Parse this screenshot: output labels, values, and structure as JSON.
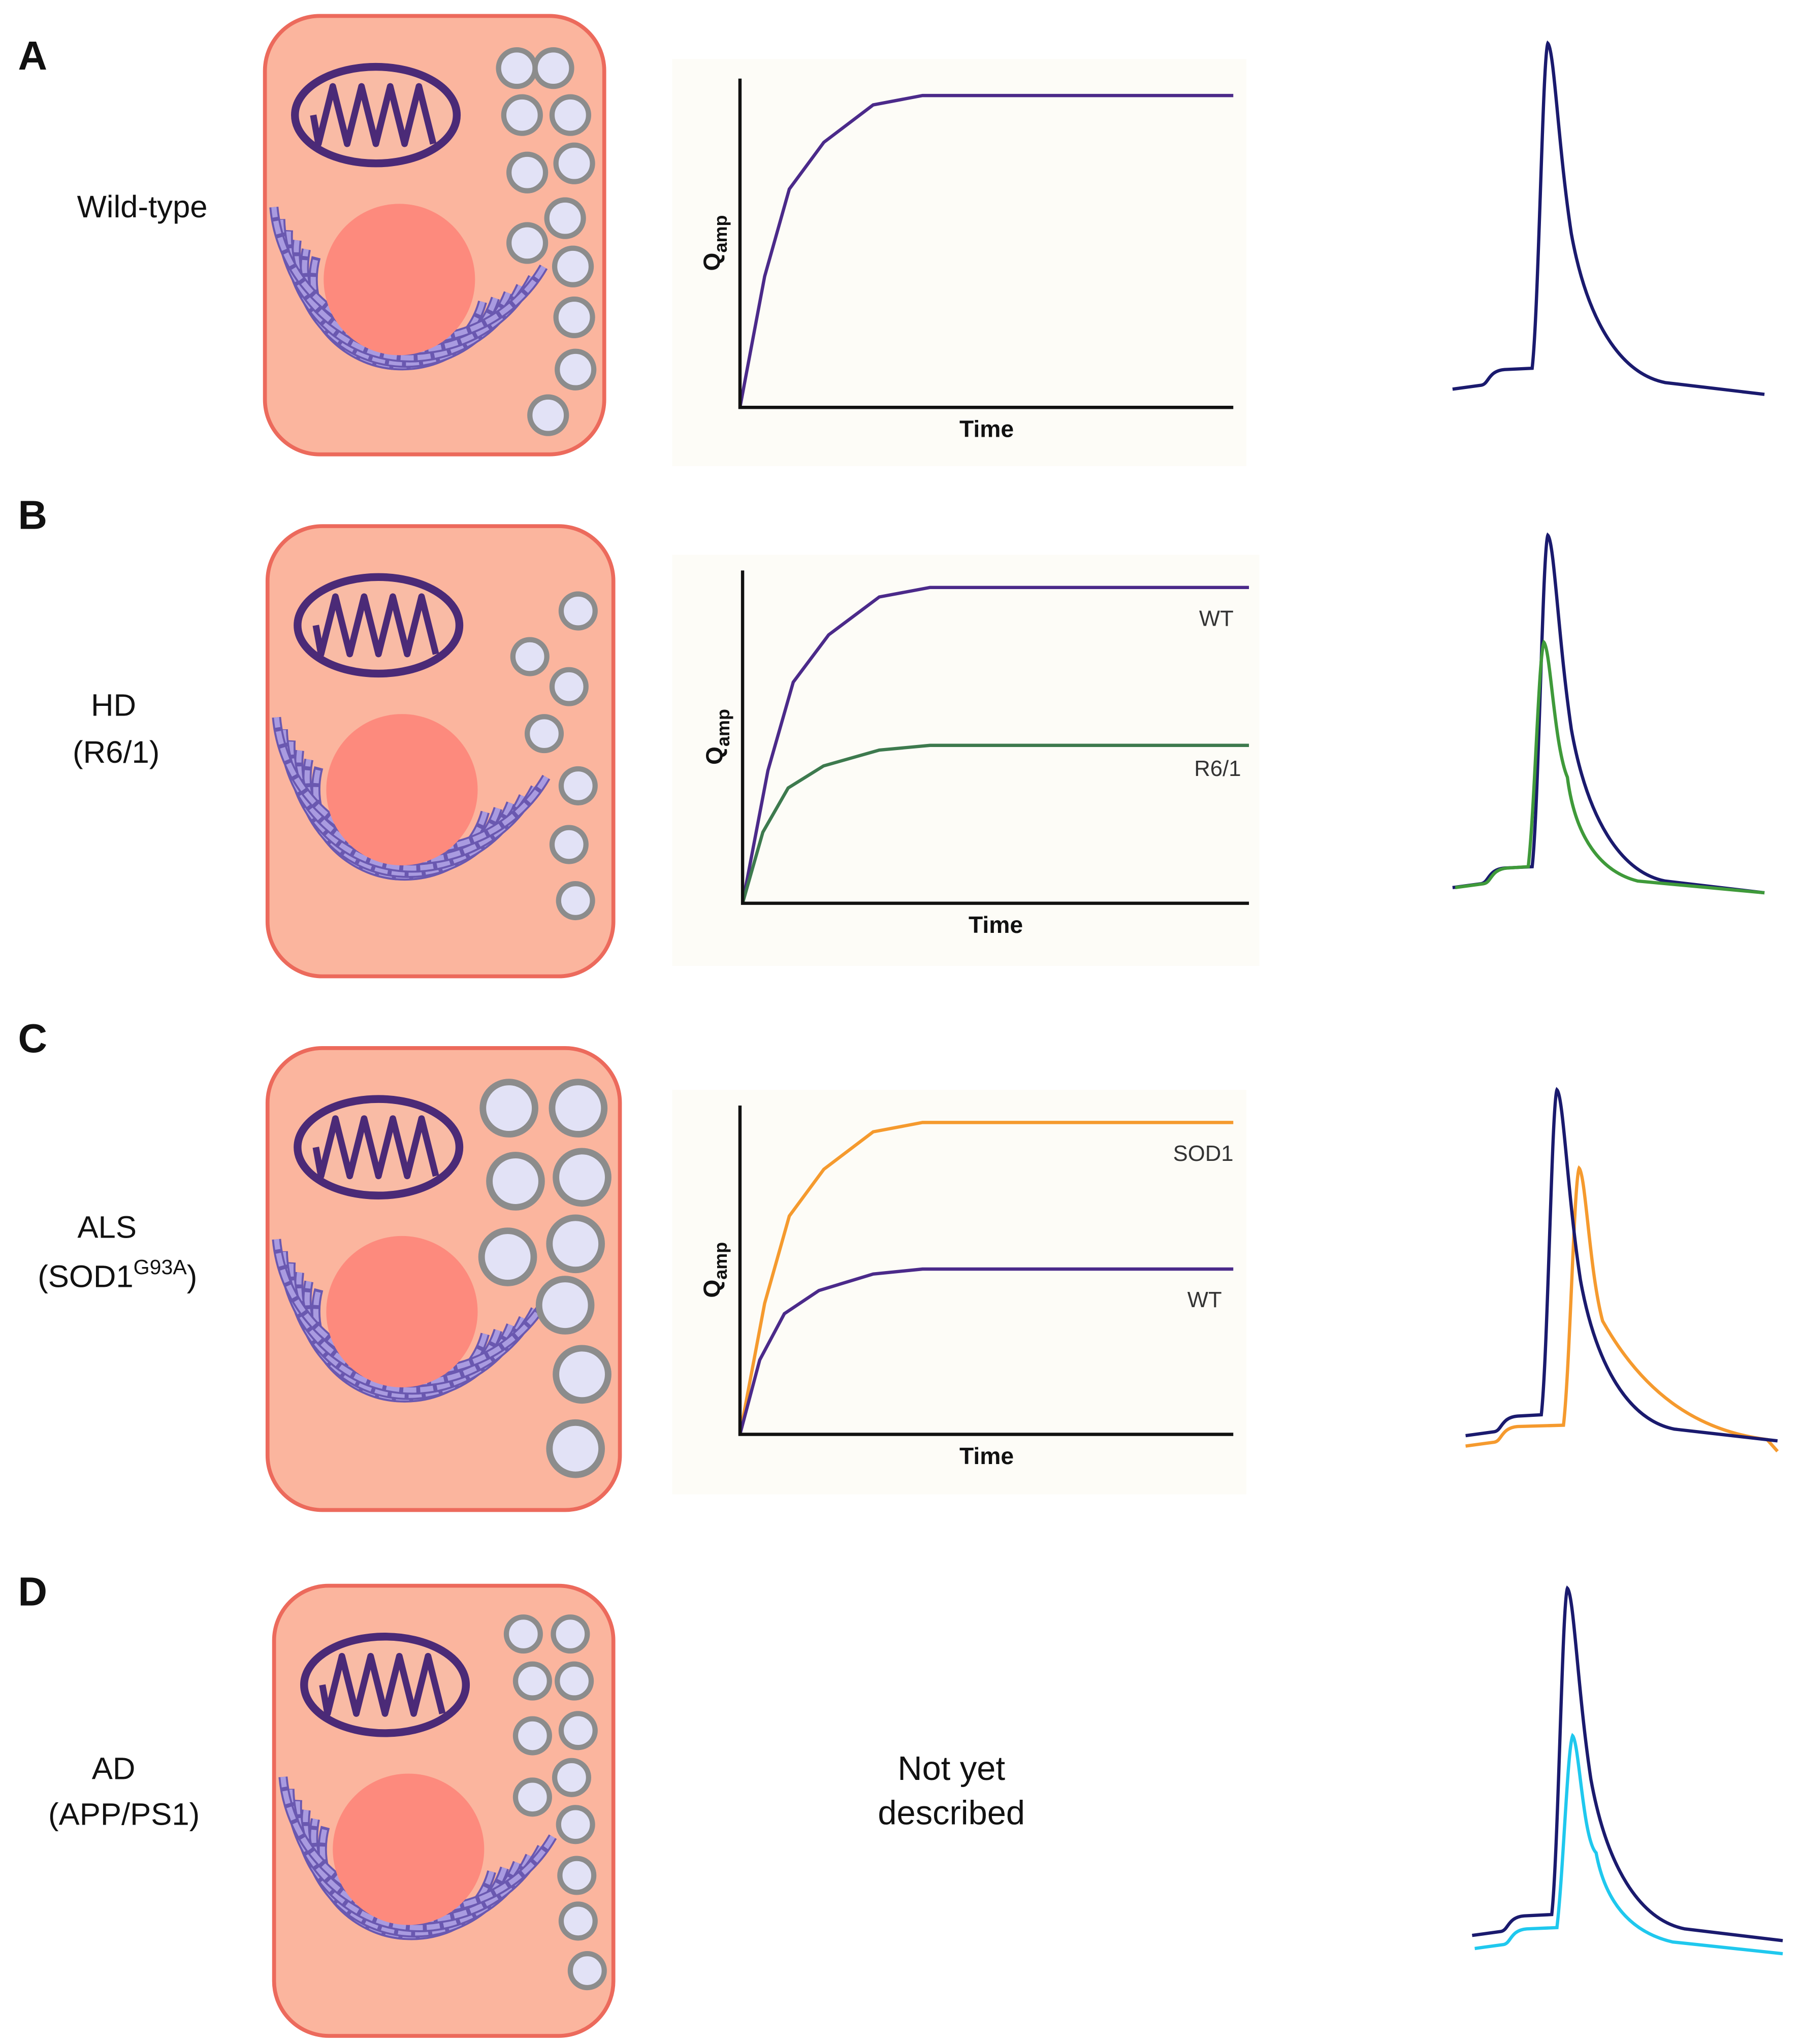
{
  "panels": [
    {
      "label": "A",
      "condition": [
        "Wild-type"
      ],
      "chart": {
        "y_label": "Q",
        "y_label_sub": "amp",
        "x_label": "Time",
        "curve_labels": []
      }
    },
    {
      "label": "B",
      "condition": [
        "HD",
        "(R6/1)"
      ],
      "chart": {
        "y_label": "Q",
        "y_label_sub": "amp",
        "x_label": "Time",
        "curve_labels": [
          "WT",
          "R6/1"
        ]
      }
    },
    {
      "label": "C",
      "condition": [
        "ALS",
        "(SOD1",
        "G93A",
        ")"
      ],
      "chart": {
        "y_label": "Q",
        "y_label_sub": "amp",
        "x_label": "Time",
        "curve_labels": [
          "SOD1",
          "WT"
        ]
      }
    },
    {
      "label": "D",
      "condition": [
        "AD",
        "(APP/PS1)"
      ],
      "note": [
        "Not yet",
        "described"
      ]
    }
  ]
}
